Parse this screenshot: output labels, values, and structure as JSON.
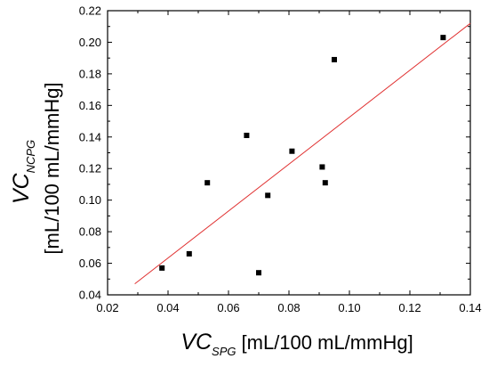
{
  "chart_data": {
    "type": "scatter",
    "title": "",
    "xlabel": {
      "main": "VC",
      "subscript": "SPG",
      "units": "[mL/100 mL/mmHg]"
    },
    "ylabel": {
      "main": "VC",
      "subscript": "NCPG",
      "units": "[mL/100 mL/mmHg]"
    },
    "xlim": [
      0.02,
      0.14
    ],
    "ylim": [
      0.04,
      0.22
    ],
    "xticks": [
      "0.02",
      "0.04",
      "0.06",
      "0.08",
      "0.10",
      "0.12",
      "0.14"
    ],
    "yticks": [
      "0.04",
      "0.06",
      "0.08",
      "0.10",
      "0.12",
      "0.14",
      "0.16",
      "0.18",
      "0.20",
      "0.22"
    ],
    "grid": false,
    "series": [
      {
        "marker": "square",
        "color": "#000000",
        "points": [
          {
            "x": 0.038,
            "y": 0.057
          },
          {
            "x": 0.047,
            "y": 0.066
          },
          {
            "x": 0.053,
            "y": 0.111
          },
          {
            "x": 0.066,
            "y": 0.141
          },
          {
            "x": 0.07,
            "y": 0.054
          },
          {
            "x": 0.073,
            "y": 0.103
          },
          {
            "x": 0.081,
            "y": 0.131
          },
          {
            "x": 0.091,
            "y": 0.121
          },
          {
            "x": 0.092,
            "y": 0.111
          },
          {
            "x": 0.095,
            "y": 0.189
          },
          {
            "x": 0.131,
            "y": 0.203
          }
        ]
      }
    ],
    "fit_line": {
      "color": "#e03030",
      "x": [
        0.029,
        0.14
      ],
      "y": [
        0.047,
        0.212
      ]
    }
  }
}
